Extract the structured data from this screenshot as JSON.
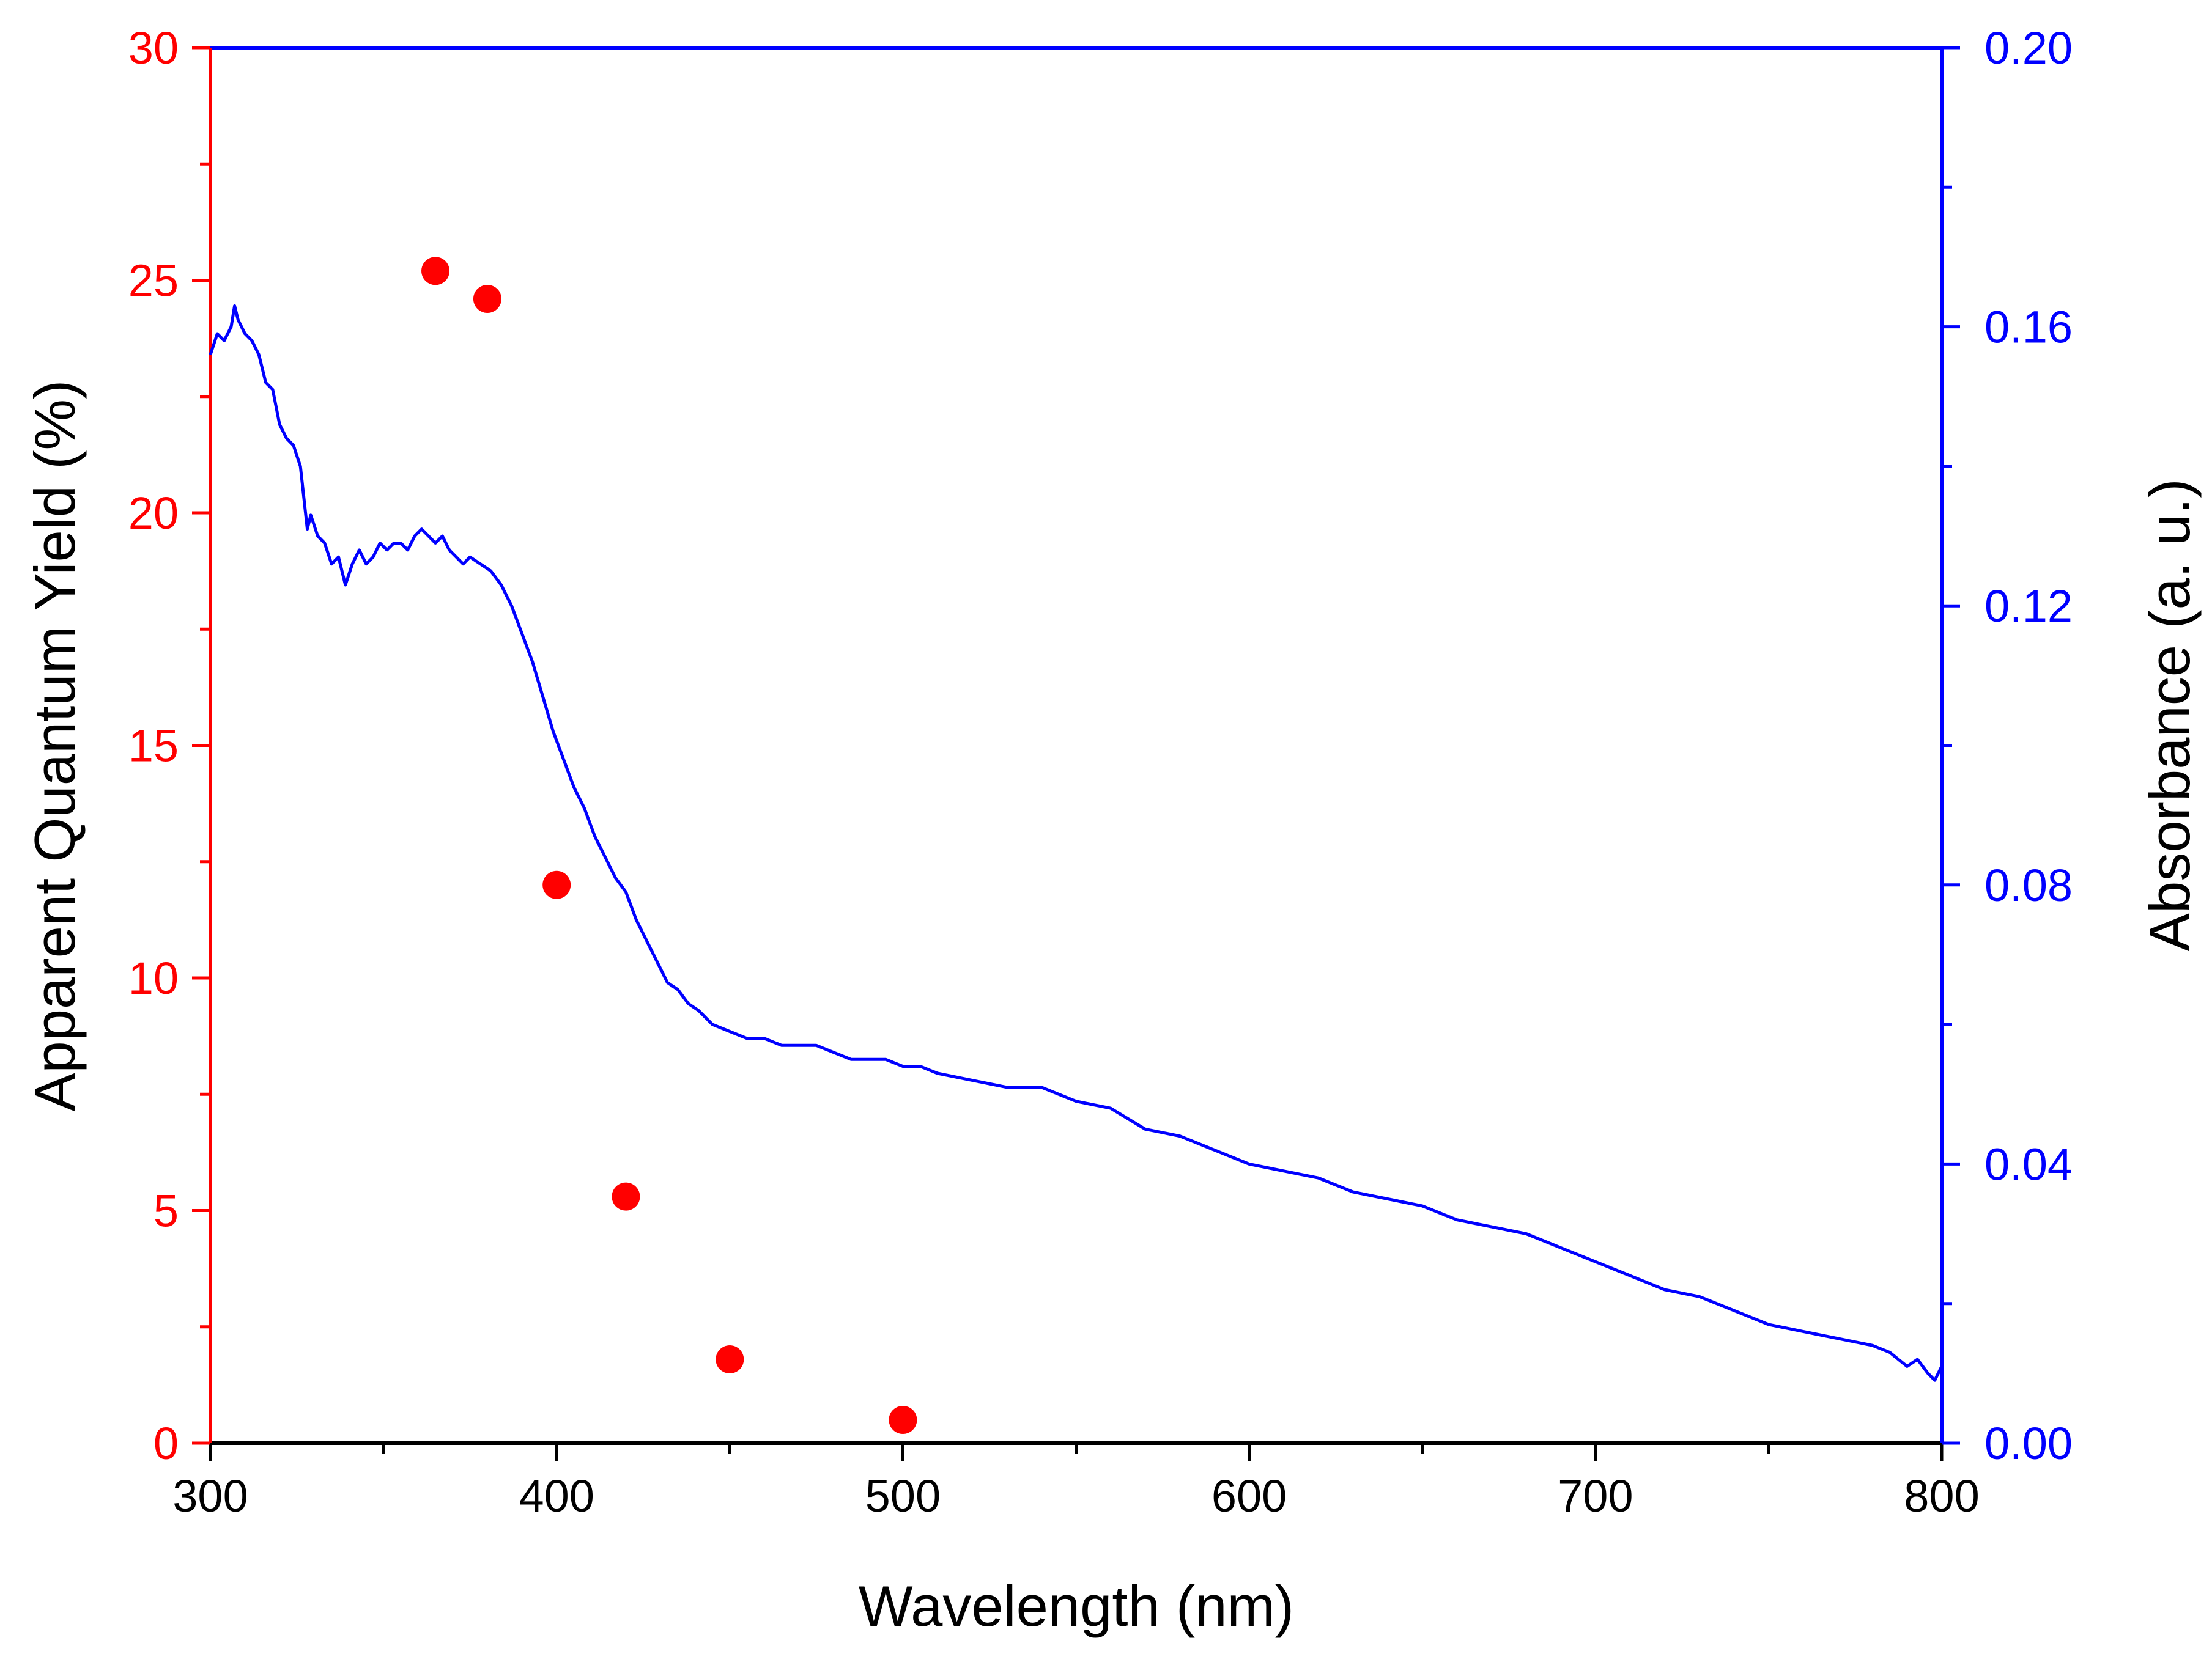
{
  "colors": {
    "left_axis": "#ff0000",
    "right_axis": "#0000ff",
    "bottom_axis": "#000000",
    "scatter": "#ff0000",
    "line": "#0000ff"
  },
  "chart_data": {
    "type": "scatter+line",
    "title": "",
    "xlabel": "Wavelength (nm)",
    "ylabel_left": "Apparent Quantum Yield (%)",
    "ylabel_right": "Absorbance (a. u.)",
    "xlim": [
      300,
      800
    ],
    "ylim_left": [
      0,
      30
    ],
    "ylim_right": [
      0,
      0.2
    ],
    "x_ticks": [
      "300",
      "400",
      "500",
      "600",
      "700",
      "800"
    ],
    "y_left_ticks": [
      "0",
      "5",
      "10",
      "15",
      "20",
      "25",
      "30"
    ],
    "y_right_ticks": [
      "0.00",
      "0.04",
      "0.08",
      "0.12",
      "0.16",
      "0.20"
    ],
    "grid": false,
    "series": [
      {
        "name": "Apparent Quantum Yield",
        "type": "scatter",
        "axis": "left",
        "x": [
          365,
          380,
          400,
          420,
          450,
          500
        ],
        "y": [
          25.2,
          24.6,
          12.0,
          5.3,
          1.8,
          0.5
        ]
      },
      {
        "name": "Absorbance",
        "type": "line",
        "axis": "right",
        "x": [
          300,
          302,
          304,
          306,
          307,
          308,
          310,
          312,
          314,
          316,
          318,
          320,
          322,
          324,
          326,
          328,
          329,
          331,
          333,
          335,
          337,
          339,
          341,
          343,
          345,
          347,
          349,
          351,
          353,
          355,
          357,
          359,
          361,
          363,
          365,
          367,
          369,
          371,
          373,
          375,
          378,
          381,
          384,
          387,
          390,
          393,
          396,
          399,
          402,
          405,
          408,
          411,
          414,
          417,
          420,
          423,
          426,
          429,
          432,
          435,
          438,
          441,
          445,
          450,
          455,
          460,
          465,
          470,
          475,
          480,
          485,
          490,
          495,
          500,
          505,
          510,
          520,
          530,
          540,
          550,
          560,
          570,
          580,
          590,
          600,
          610,
          620,
          630,
          640,
          650,
          660,
          670,
          680,
          690,
          700,
          710,
          720,
          730,
          740,
          750,
          760,
          770,
          780,
          785,
          790,
          793,
          796,
          798,
          800
        ],
        "y": [
          0.156,
          0.159,
          0.158,
          0.16,
          0.163,
          0.161,
          0.159,
          0.158,
          0.156,
          0.152,
          0.151,
          0.146,
          0.144,
          0.143,
          0.14,
          0.131,
          0.133,
          0.13,
          0.129,
          0.126,
          0.127,
          0.123,
          0.126,
          0.128,
          0.126,
          0.127,
          0.129,
          0.128,
          0.129,
          0.129,
          0.128,
          0.13,
          0.131,
          0.13,
          0.129,
          0.13,
          0.128,
          0.127,
          0.126,
          0.127,
          0.126,
          0.125,
          0.123,
          0.12,
          0.116,
          0.112,
          0.107,
          0.102,
          0.098,
          0.094,
          0.091,
          0.087,
          0.084,
          0.081,
          0.079,
          0.075,
          0.072,
          0.069,
          0.066,
          0.065,
          0.063,
          0.062,
          0.06,
          0.059,
          0.058,
          0.058,
          0.057,
          0.057,
          0.057,
          0.056,
          0.055,
          0.055,
          0.055,
          0.054,
          0.054,
          0.053,
          0.052,
          0.051,
          0.051,
          0.049,
          0.048,
          0.045,
          0.044,
          0.042,
          0.04,
          0.039,
          0.038,
          0.036,
          0.035,
          0.034,
          0.032,
          0.031,
          0.03,
          0.028,
          0.026,
          0.024,
          0.022,
          0.021,
          0.019,
          0.017,
          0.016,
          0.015,
          0.014,
          0.013,
          0.011,
          0.012,
          0.01,
          0.009,
          0.011
        ]
      }
    ]
  }
}
